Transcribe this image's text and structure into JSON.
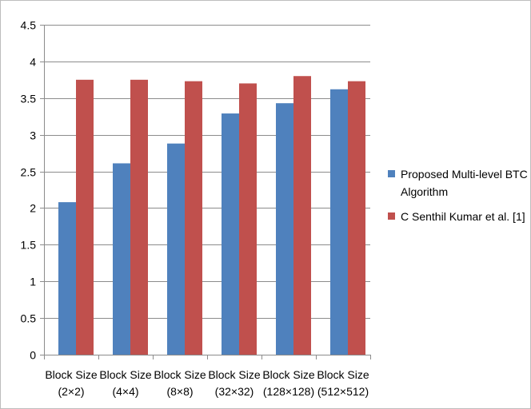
{
  "chart_data": {
    "type": "bar",
    "categories": [
      [
        "Block Size",
        "(2×2)"
      ],
      [
        "Block Size",
        "(4×4)"
      ],
      [
        "Block Size",
        "(8×8)"
      ],
      [
        "Block Size",
        "(32×32)"
      ],
      [
        "Block Size",
        "(128×128)"
      ],
      [
        "Block Size",
        "(512×512)"
      ]
    ],
    "series": [
      {
        "name_lines": [
          "Proposed Multi-level  BTC",
          "Algorithm"
        ],
        "color": "#4f81bd",
        "values": [
          2.08,
          2.61,
          2.88,
          3.29,
          3.43,
          3.62
        ]
      },
      {
        "name_lines": [
          "C Senthil Kumar et al. [1]"
        ],
        "color": "#c0504d",
        "values": [
          3.75,
          3.75,
          3.73,
          3.7,
          3.8,
          3.73
        ]
      }
    ],
    "y_ticks": [
      "0",
      "0.5",
      "1",
      "1.5",
      "2",
      "2.5",
      "3",
      "3.5",
      "4",
      "4.5"
    ],
    "ylim": [
      0,
      4.5
    ],
    "grid": true,
    "legend": "right",
    "title": "",
    "xlabel": "",
    "ylabel": ""
  }
}
